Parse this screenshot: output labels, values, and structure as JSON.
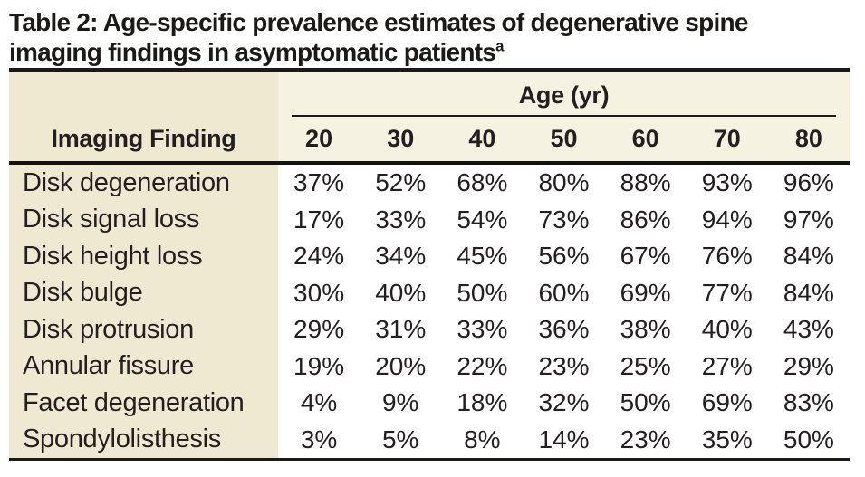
{
  "title": {
    "line1": "Table 2: Age-specific prevalence estimates of degenerative spine",
    "line2": "imaging findings in asymptomatic patients",
    "superscript": "a"
  },
  "table": {
    "corner_header": "Imaging Finding",
    "age_group_header": "Age (yr)",
    "age_columns": [
      "20",
      "30",
      "40",
      "50",
      "60",
      "70",
      "80"
    ],
    "rows": [
      {
        "label": "Disk degeneration",
        "values": [
          "37%",
          "52%",
          "68%",
          "80%",
          "88%",
          "93%",
          "96%"
        ]
      },
      {
        "label": "Disk signal loss",
        "values": [
          "17%",
          "33%",
          "54%",
          "73%",
          "86%",
          "94%",
          "97%"
        ]
      },
      {
        "label": "Disk height loss",
        "values": [
          "24%",
          "34%",
          "45%",
          "56%",
          "67%",
          "76%",
          "84%"
        ]
      },
      {
        "label": "Disk bulge",
        "values": [
          "30%",
          "40%",
          "50%",
          "60%",
          "69%",
          "77%",
          "84%"
        ]
      },
      {
        "label": "Disk protrusion",
        "values": [
          "29%",
          "31%",
          "33%",
          "36%",
          "38%",
          "40%",
          "43%"
        ]
      },
      {
        "label": "Annular fissure",
        "values": [
          "19%",
          "20%",
          "22%",
          "23%",
          "25%",
          "27%",
          "29%"
        ]
      },
      {
        "label": "Facet degeneration",
        "values": [
          "4%",
          "9%",
          "18%",
          "32%",
          "50%",
          "69%",
          "83%"
        ]
      },
      {
        "label": "Spondylolisthesis",
        "values": [
          "3%",
          "5%",
          "8%",
          "14%",
          "23%",
          "35%",
          "50%"
        ]
      }
    ]
  },
  "colors": {
    "label_column_bg": "#efe9d1",
    "header_band_bg": "#f6f2e1",
    "rule_color": "#1c1a19",
    "ink": "#231f20",
    "page_bg": "#ffffff"
  }
}
